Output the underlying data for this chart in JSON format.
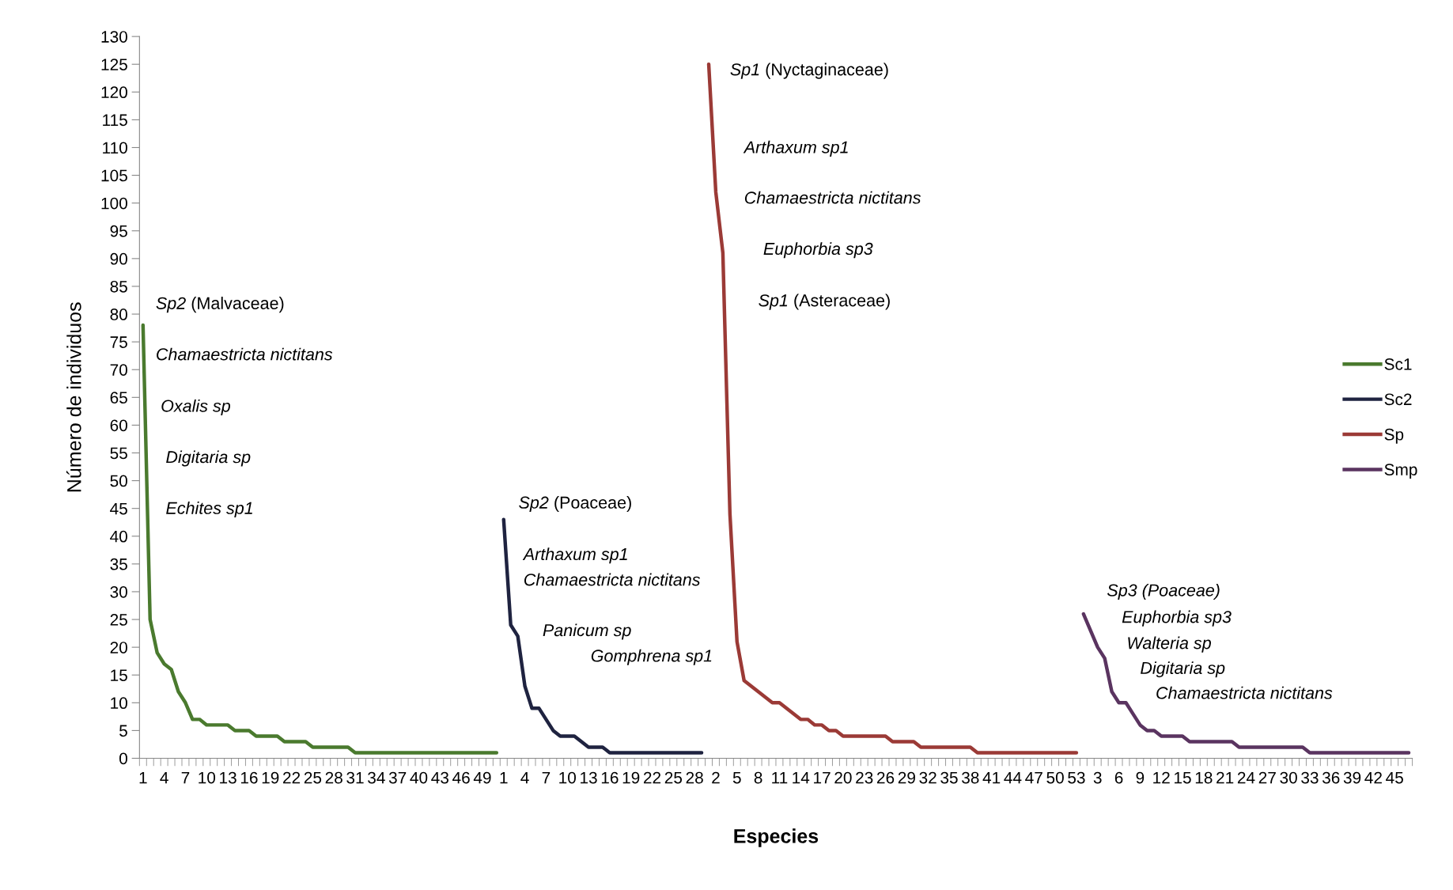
{
  "chart_data": {
    "type": "line",
    "xlabel": "Especies",
    "ylabel": "Número de individuos",
    "categories": [
      "1",
      null,
      null,
      "4",
      null,
      null,
      "7",
      null,
      null,
      "10",
      null,
      null,
      "13",
      null,
      null,
      "16",
      null,
      null,
      "19",
      null,
      null,
      "22",
      null,
      null,
      "25",
      null,
      null,
      "28",
      null,
      null,
      "31",
      null,
      null,
      "34",
      null,
      null,
      "37",
      null,
      null,
      "40",
      null,
      null,
      "43",
      null,
      null,
      "46",
      null,
      null,
      "49",
      null,
      null,
      "1",
      null,
      null,
      "4",
      null,
      null,
      "7",
      null,
      null,
      "10",
      null,
      null,
      "13",
      null,
      null,
      "16",
      null,
      null,
      "19",
      null,
      null,
      "22",
      null,
      null,
      "25",
      null,
      null,
      "28",
      null,
      null,
      "2",
      null,
      null,
      "5",
      null,
      null,
      "8",
      null,
      null,
      "11",
      null,
      null,
      "14",
      null,
      null,
      "17",
      null,
      null,
      "20",
      null,
      null,
      "23",
      null,
      null,
      "26",
      null,
      null,
      "29",
      null,
      null,
      "32",
      null,
      null,
      "35",
      null,
      null,
      "38",
      null,
      null,
      "41",
      null,
      null,
      "44",
      null,
      null,
      "47",
      null,
      null,
      "50",
      null,
      null,
      "53",
      null,
      null,
      "3",
      null,
      null,
      "6",
      null,
      null,
      "9",
      null,
      null,
      "12",
      null,
      null,
      "15",
      null,
      null,
      "18",
      null,
      null,
      "21",
      null,
      null,
      "24",
      null,
      null,
      "27",
      null,
      null,
      "30",
      null,
      null,
      "33",
      null,
      null,
      "36",
      null,
      null,
      "39",
      null,
      null,
      "42",
      null,
      null,
      "45",
      null,
      null
    ],
    "series": [
      {
        "name": "Sc1",
        "color": "#4a7a2e",
        "values": [
          78,
          25,
          19,
          17,
          16,
          12,
          10,
          7,
          7,
          6,
          6,
          6,
          6,
          5,
          5,
          5,
          4,
          4,
          4,
          4,
          3,
          3,
          3,
          3,
          2,
          2,
          2,
          2,
          2,
          2,
          1,
          1,
          1,
          1,
          1,
          1,
          1,
          1,
          1,
          1,
          1,
          1,
          1,
          1,
          1,
          1,
          1,
          1,
          1,
          1,
          1,
          null,
          null,
          null,
          null,
          null,
          null,
          null,
          null,
          null,
          null,
          null,
          null,
          null,
          null,
          null,
          null,
          null,
          null,
          null,
          null,
          null,
          null,
          null,
          null,
          null,
          null,
          null,
          null,
          null,
          null,
          null,
          null,
          null,
          null,
          null,
          null,
          null,
          null,
          null,
          null,
          null,
          null,
          null,
          null,
          null,
          null,
          null,
          null,
          null,
          null,
          null,
          null,
          null,
          null,
          null,
          null,
          null,
          null,
          null,
          null,
          null,
          null,
          null,
          null,
          null,
          null,
          null,
          null,
          null,
          null,
          null,
          null,
          null,
          null,
          null,
          null,
          null,
          null,
          null,
          null,
          null,
          null,
          null,
          null,
          null,
          null,
          null,
          null,
          null,
          null,
          null,
          null,
          null,
          null,
          null,
          null,
          null,
          null,
          null,
          null,
          null,
          null,
          null,
          null,
          null,
          null,
          null,
          null,
          null,
          null,
          null,
          null,
          null,
          null,
          null,
          null,
          null,
          null,
          null,
          null,
          null,
          null,
          null,
          null,
          null,
          null,
          null,
          null,
          null
        ]
      },
      {
        "name": "Sc2",
        "color": "#1f2340",
        "values": [
          null,
          null,
          null,
          null,
          null,
          null,
          null,
          null,
          null,
          null,
          null,
          null,
          null,
          null,
          null,
          null,
          null,
          null,
          null,
          null,
          null,
          null,
          null,
          null,
          null,
          null,
          null,
          null,
          null,
          null,
          null,
          null,
          null,
          null,
          null,
          null,
          null,
          null,
          null,
          null,
          null,
          null,
          null,
          null,
          null,
          null,
          null,
          null,
          null,
          null,
          null,
          43,
          24,
          22,
          13,
          9,
          9,
          7,
          5,
          4,
          4,
          4,
          3,
          2,
          2,
          2,
          1,
          1,
          1,
          1,
          1,
          1,
          1,
          1,
          1,
          1,
          1,
          1,
          1,
          1,
          null,
          null,
          null,
          null,
          null,
          null,
          null,
          null,
          null,
          null,
          null,
          null,
          null,
          null,
          null,
          null,
          null,
          null,
          null,
          null,
          null,
          null,
          null,
          null,
          null,
          null,
          null,
          null,
          null,
          null,
          null,
          null,
          null,
          null,
          null,
          null,
          null,
          null,
          null,
          null,
          null,
          null,
          null,
          null,
          null,
          null,
          null,
          null,
          null,
          null,
          null,
          null,
          null,
          null,
          null,
          null,
          null,
          null,
          null,
          null,
          null,
          null,
          null,
          null,
          null,
          null,
          null,
          null,
          null,
          null,
          null,
          null,
          null,
          null,
          null,
          null,
          null,
          null,
          null,
          null,
          null,
          null,
          null,
          null,
          null,
          null,
          null,
          null,
          null,
          null,
          null,
          null,
          null,
          null,
          null,
          null,
          null,
          null,
          null,
          null
        ]
      },
      {
        "name": "Sp",
        "color": "#9b3a36",
        "values": [
          null,
          null,
          null,
          null,
          null,
          null,
          null,
          null,
          null,
          null,
          null,
          null,
          null,
          null,
          null,
          null,
          null,
          null,
          null,
          null,
          null,
          null,
          null,
          null,
          null,
          null,
          null,
          null,
          null,
          null,
          null,
          null,
          null,
          null,
          null,
          null,
          null,
          null,
          null,
          null,
          null,
          null,
          null,
          null,
          null,
          null,
          null,
          null,
          null,
          null,
          null,
          null,
          null,
          null,
          null,
          null,
          null,
          null,
          null,
          null,
          null,
          null,
          null,
          null,
          null,
          null,
          null,
          null,
          null,
          null,
          null,
          null,
          null,
          null,
          null,
          null,
          null,
          null,
          null,
          null,
          125,
          102,
          91,
          44,
          21,
          14,
          13,
          12,
          11,
          10,
          10,
          9,
          8,
          7,
          7,
          6,
          6,
          5,
          5,
          4,
          4,
          4,
          4,
          4,
          4,
          4,
          3,
          3,
          3,
          3,
          2,
          2,
          2,
          2,
          2,
          2,
          2,
          2,
          1,
          1,
          1,
          1,
          1,
          1,
          1,
          1,
          1,
          1,
          1,
          1,
          1,
          1,
          1,
          null,
          null,
          null,
          null,
          null,
          null,
          null,
          null,
          null,
          null,
          null,
          null,
          null,
          null,
          null,
          null,
          null,
          null,
          null,
          null,
          null,
          null,
          null,
          null,
          null,
          null,
          null,
          null,
          null,
          null,
          null,
          null,
          null,
          null,
          null,
          null,
          null,
          null,
          null,
          null,
          null,
          null,
          null,
          null,
          null,
          null,
          null
        ]
      },
      {
        "name": "Smp",
        "color": "#5a3460",
        "values": [
          null,
          null,
          null,
          null,
          null,
          null,
          null,
          null,
          null,
          null,
          null,
          null,
          null,
          null,
          null,
          null,
          null,
          null,
          null,
          null,
          null,
          null,
          null,
          null,
          null,
          null,
          null,
          null,
          null,
          null,
          null,
          null,
          null,
          null,
          null,
          null,
          null,
          null,
          null,
          null,
          null,
          null,
          null,
          null,
          null,
          null,
          null,
          null,
          null,
          null,
          null,
          null,
          null,
          null,
          null,
          null,
          null,
          null,
          null,
          null,
          null,
          null,
          null,
          null,
          null,
          null,
          null,
          null,
          null,
          null,
          null,
          null,
          null,
          null,
          null,
          null,
          null,
          null,
          null,
          null,
          null,
          null,
          null,
          null,
          null,
          null,
          null,
          null,
          null,
          null,
          null,
          null,
          null,
          null,
          null,
          null,
          null,
          null,
          null,
          null,
          null,
          null,
          null,
          null,
          null,
          null,
          null,
          null,
          null,
          null,
          null,
          null,
          null,
          null,
          null,
          null,
          null,
          null,
          null,
          null,
          null,
          null,
          null,
          null,
          null,
          null,
          null,
          null,
          null,
          null,
          null,
          null,
          null,
          26,
          23,
          20,
          18,
          12,
          10,
          10,
          8,
          6,
          5,
          5,
          4,
          4,
          4,
          4,
          3,
          3,
          3,
          3,
          3,
          3,
          3,
          2,
          2,
          2,
          2,
          2,
          2,
          2,
          2,
          2,
          2,
          1,
          1,
          1,
          1,
          1,
          1,
          1,
          1,
          1,
          1,
          1,
          1,
          1,
          1,
          1
        ]
      }
    ],
    "ylim": [
      0,
      130
    ],
    "yticks": [
      0,
      5,
      10,
      15,
      20,
      25,
      30,
      35,
      40,
      45,
      50,
      55,
      60,
      65,
      70,
      75,
      80,
      85,
      90,
      95,
      100,
      105,
      110,
      115,
      120,
      125,
      130
    ],
    "grid": false,
    "legend": "right",
    "marker": "none",
    "line_style": "solid",
    "annotations": [
      "Sp2 (Malvaceae)",
      "Chamaestricta nictitans",
      "Oxalis sp",
      "Digitaria sp",
      "Echites sp1",
      "Sp2 (Poaceae)",
      "Arthaxum sp1",
      "Chamaestricta nictitans",
      "Panicum sp",
      "Gomphrena sp1",
      "Sp1 (Nyctaginaceae)",
      "Arthaxum sp1",
      "Chamaestricta nictitans",
      "Euphorbia sp3",
      "Sp1 (Asteraceae)",
      "Sp3 (Poaceae)",
      "Euphorbia sp3",
      "Walteria sp",
      "Digitaria sp",
      "Chamaestricta nictitans"
    ]
  }
}
